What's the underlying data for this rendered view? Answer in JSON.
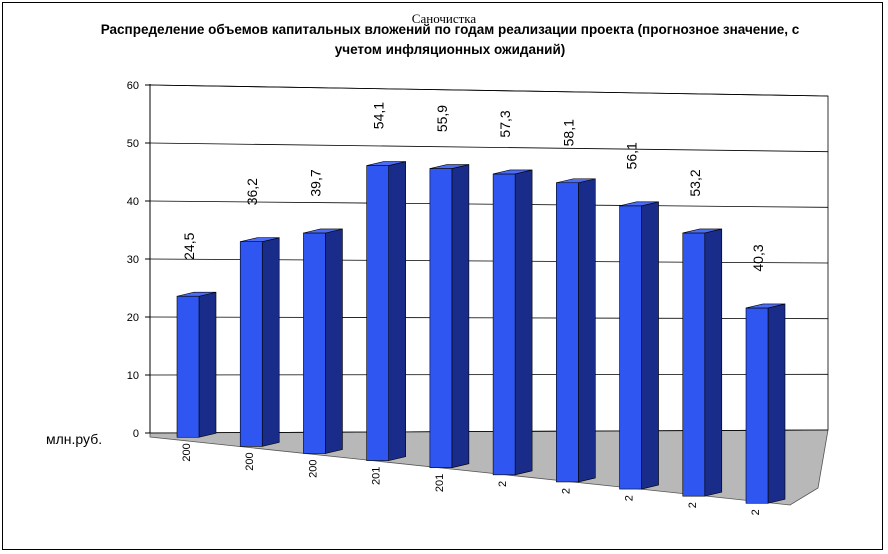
{
  "overlay_title": "Саночистка",
  "chart_data": {
    "type": "bar",
    "title": "Распределение объемов капитальных вложений по годам реализации проекта (прогнозное значение, с учетом инфляционных ожиданий)",
    "ylabel": "млн.руб.",
    "ylim": [
      0,
      60
    ],
    "yticks": [
      0,
      10,
      20,
      30,
      40,
      50,
      60
    ],
    "grid": true,
    "legend": "none",
    "categories": [
      "200",
      "200",
      "200",
      "201",
      "201",
      "2",
      "2",
      "2",
      "2",
      "2"
    ],
    "values": [
      24.5,
      36.2,
      39.7,
      54.1,
      55.9,
      57.3,
      58.1,
      56.1,
      53.2,
      40.3
    ],
    "data_labels": [
      "24,5",
      "36,2",
      "39,7",
      "54,1",
      "55,9",
      "57,3",
      "58,1",
      "56,1",
      "53,2",
      "40,3"
    ],
    "bar_color": "#2f56f0"
  }
}
